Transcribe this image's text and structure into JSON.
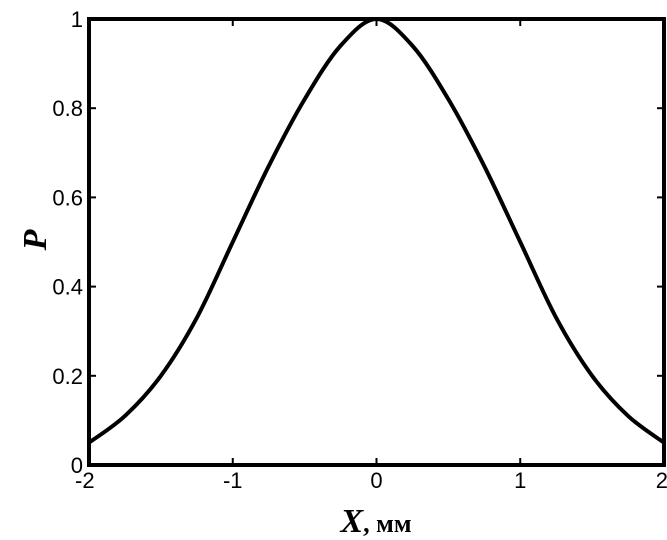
{
  "chart_data": {
    "type": "line",
    "title": "",
    "xlabel_symbol": "X",
    "xlabel_unit": ", мм",
    "ylabel": "P",
    "xlim": [
      -2,
      2
    ],
    "ylim": [
      0,
      1
    ],
    "x_ticks": [
      -2,
      -1,
      0,
      1,
      2
    ],
    "y_ticks": [
      0,
      0.2,
      0.4,
      0.6,
      0.8,
      1
    ],
    "x_tick_labels": [
      "-2",
      "-1",
      "0",
      "1",
      "2"
    ],
    "y_tick_labels": [
      "0",
      "0.2",
      "0.4",
      "0.6",
      "0.8",
      "1"
    ],
    "grid": false,
    "line_color": "#000000",
    "series": [
      {
        "x": [
          -2.0,
          -1.75,
          -1.5,
          -1.25,
          -1.0,
          -0.75,
          -0.5,
          -0.25,
          0.0,
          0.25,
          0.5,
          0.75,
          1.0,
          1.25,
          1.5,
          1.75,
          2.0
        ],
        "y": [
          0.05,
          0.11,
          0.2,
          0.33,
          0.5,
          0.67,
          0.82,
          0.94,
          1.0,
          0.94,
          0.82,
          0.67,
          0.5,
          0.33,
          0.2,
          0.11,
          0.05
        ]
      }
    ]
  }
}
